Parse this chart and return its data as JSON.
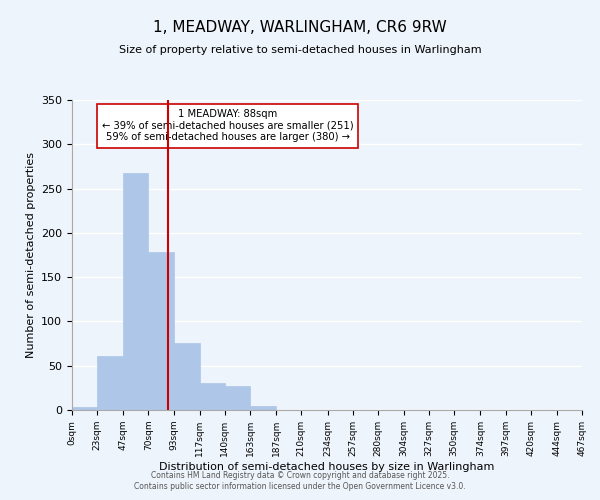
{
  "title": "1, MEADWAY, WARLINGHAM, CR6 9RW",
  "subtitle": "Size of property relative to semi-detached houses in Warlingham",
  "xlabel": "Distribution of semi-detached houses by size in Warlingham",
  "ylabel": "Number of semi-detached properties",
  "bin_edges": [
    0,
    23,
    47,
    70,
    93,
    117,
    140,
    163,
    187,
    210,
    234,
    257,
    280,
    304,
    327,
    350,
    374,
    397,
    420,
    444,
    467
  ],
  "counts": [
    3,
    61,
    268,
    178,
    76,
    30,
    27,
    5,
    0,
    0,
    0,
    0,
    0,
    0,
    0,
    0,
    0,
    0,
    0,
    0
  ],
  "bar_color": "#aec6e8",
  "bar_edgecolor": "#aec6e8",
  "property_value": 88,
  "vline_color": "#cc0000",
  "annotation_line1": "1 MEADWAY: 88sqm",
  "annotation_line2": "← 39% of semi-detached houses are smaller (251)",
  "annotation_line3": "59% of semi-detached houses are larger (380) →",
  "annotation_box_edgecolor": "#cc0000",
  "annotation_box_facecolor": "#ffffff",
  "ylim": [
    0,
    350
  ],
  "yticks": [
    0,
    50,
    100,
    150,
    200,
    250,
    300,
    350
  ],
  "tick_labels": [
    "0sqm",
    "23sqm",
    "47sqm",
    "70sqm",
    "93sqm",
    "117sqm",
    "140sqm",
    "163sqm",
    "187sqm",
    "210sqm",
    "234sqm",
    "257sqm",
    "280sqm",
    "304sqm",
    "327sqm",
    "350sqm",
    "374sqm",
    "397sqm",
    "420sqm",
    "444sqm",
    "467sqm"
  ],
  "footer1": "Contains HM Land Registry data © Crown copyright and database right 2025.",
  "footer2": "Contains public sector information licensed under the Open Government Licence v3.0.",
  "bg_color": "#eef4fb",
  "grid_color": "#ffffff"
}
